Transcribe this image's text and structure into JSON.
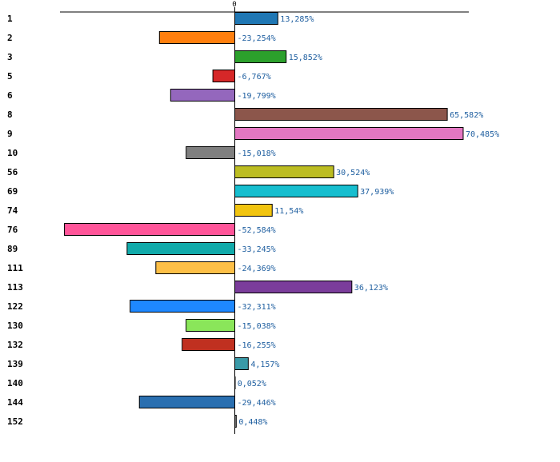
{
  "chart_data": {
    "type": "bar",
    "orientation": "horizontal",
    "zero_tick_label": "0",
    "xlim": [
      -54,
      73
    ],
    "grid": false,
    "categories": [
      "1",
      "2",
      "3",
      "5",
      "6",
      "8",
      "9",
      "10",
      "56",
      "69",
      "74",
      "76",
      "89",
      "111",
      "113",
      "122",
      "130",
      "132",
      "139",
      "140",
      "144",
      "152"
    ],
    "values": [
      13.285,
      -23.254,
      15.852,
      -6.767,
      -19.799,
      65.582,
      70.485,
      -15.018,
      30.524,
      37.939,
      11.54,
      -52.584,
      -33.245,
      -24.369,
      36.123,
      -32.311,
      -15.038,
      -16.255,
      4.157,
      0.052,
      -29.446,
      0.448
    ],
    "value_labels": [
      "13,285%",
      "-23,254%",
      "15,852%",
      "-6,767%",
      "-19,799%",
      "65,582%",
      "70,485%",
      "-15,018%",
      "30,524%",
      "37,939%",
      "11,54%",
      "-52,584%",
      "-33,245%",
      "-24,369%",
      "36,123%",
      "-32,311%",
      "-15,038%",
      "-16,255%",
      "4,157%",
      "0,052%",
      "-29,446%",
      "0,448%"
    ],
    "colors": [
      "#1f77b4",
      "#ff7f0e",
      "#2ca02c",
      "#d62728",
      "#9467bd",
      "#8c564b",
      "#e377c2",
      "#7f7f7f",
      "#bcbd22",
      "#17becf",
      "#f1c40f",
      "#ff5599",
      "#11aaaa",
      "#fdbf47",
      "#7b3d9b",
      "#1e88ff",
      "#8ae65a",
      "#c03020",
      "#3a9aa8",
      "#2ca02c",
      "#2a6fb0",
      "#888888"
    ]
  }
}
